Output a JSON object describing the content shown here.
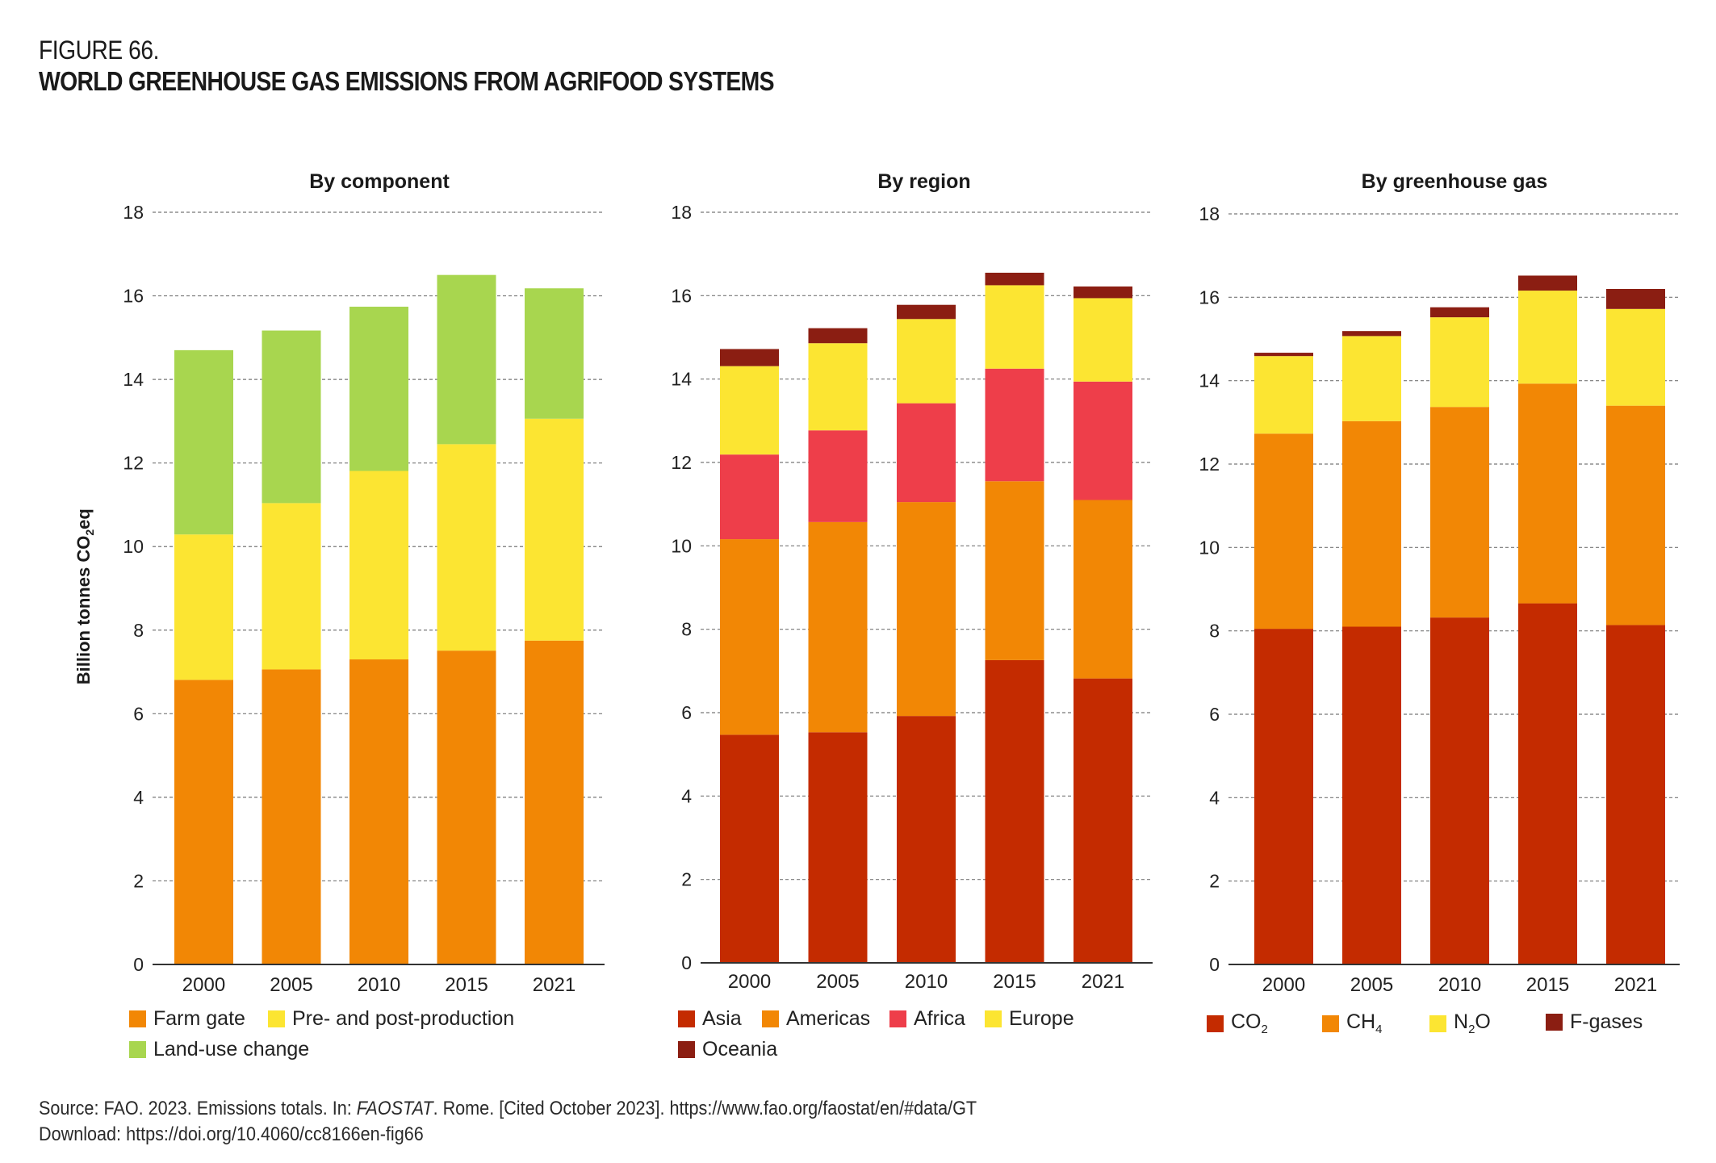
{
  "figure": {
    "label": "FIGURE 66.",
    "title": "WORLD GREENHOUSE GAS EMISSIONS FROM AGRIFOOD SYSTEMS",
    "y_axis_label": "Billion tonnes CO₂eq"
  },
  "source": {
    "line1_prefix": "Source: FAO. 2023. Emissions totals. In: ",
    "line1_italic": "FAOSTAT",
    "line1_suffix": ". Rome. [Cited October 2023]. https://www.fao.org/faostat/en/#data/GT",
    "line2": "Download: https://doi.org/10.4060/cc8166en-fig66"
  },
  "chart_data": [
    {
      "type": "bar",
      "stacked": true,
      "title": "By component",
      "xlabel": "",
      "ylabel": "Billion tonnes CO2eq",
      "ylim": [
        0,
        18
      ],
      "yticks": [
        0,
        2,
        4,
        6,
        8,
        10,
        12,
        14,
        16,
        18
      ],
      "grid": true,
      "legend_position": "bottom",
      "categories": [
        "2000",
        "2005",
        "2010",
        "2015",
        "2021"
      ],
      "series": [
        {
          "name": "Farm gate",
          "color": "#F28705",
          "values": [
            6.81,
            7.06,
            7.3,
            7.51,
            7.75
          ]
        },
        {
          "name": "Pre- and post-production",
          "color": "#FCE532",
          "values": [
            3.48,
            3.98,
            4.51,
            4.94,
            5.31
          ]
        },
        {
          "name": "Land-use change",
          "color": "#A8D64F",
          "values": [
            4.41,
            4.13,
            3.93,
            4.05,
            3.12
          ]
        }
      ],
      "legend_rows": [
        [
          "Farm gate",
          "Pre- and post-production"
        ],
        [
          "Land-use change"
        ]
      ]
    },
    {
      "type": "bar",
      "stacked": true,
      "title": "By region",
      "xlabel": "",
      "ylabel": "",
      "ylim": [
        0,
        18
      ],
      "yticks": [
        0,
        2,
        4,
        6,
        8,
        10,
        12,
        14,
        16,
        18
      ],
      "grid": true,
      "legend_position": "bottom",
      "categories": [
        "2000",
        "2005",
        "2010",
        "2015",
        "2021"
      ],
      "series": [
        {
          "name": "Asia",
          "color": "#C42B00",
          "values": [
            5.47,
            5.53,
            5.92,
            7.26,
            6.82
          ]
        },
        {
          "name": "Americas",
          "color": "#F28705",
          "values": [
            4.69,
            5.04,
            5.13,
            4.29,
            4.28
          ]
        },
        {
          "name": "Africa",
          "color": "#EE3E4A",
          "values": [
            2.03,
            2.2,
            2.37,
            2.7,
            2.84
          ]
        },
        {
          "name": "Europe",
          "color": "#FCE532",
          "values": [
            2.12,
            2.09,
            2.02,
            2.0,
            2.0
          ]
        },
        {
          "name": "Oceania",
          "color": "#8B1E12",
          "values": [
            0.41,
            0.36,
            0.34,
            0.3,
            0.28
          ]
        }
      ],
      "legend_rows": [
        [
          "Asia",
          "Americas",
          "Africa",
          "Europe"
        ],
        [
          "Oceania"
        ]
      ]
    },
    {
      "type": "bar",
      "stacked": true,
      "title": "By greenhouse gas",
      "xlabel": "",
      "ylabel": "",
      "ylim": [
        0,
        18
      ],
      "yticks": [
        0,
        2,
        4,
        6,
        8,
        10,
        12,
        14,
        16,
        18
      ],
      "grid": true,
      "legend_position": "bottom",
      "categories": [
        "2000",
        "2005",
        "2010",
        "2015",
        "2021"
      ],
      "series": [
        {
          "name": "CO2",
          "label_main": "CO",
          "label_sub": "2",
          "label_tail": "",
          "color": "#C42B00",
          "values": [
            8.05,
            8.1,
            8.32,
            8.66,
            8.14
          ]
        },
        {
          "name": "CH4",
          "label_main": "CH",
          "label_sub": "4",
          "label_tail": "",
          "color": "#F28705",
          "values": [
            4.68,
            4.93,
            5.05,
            5.27,
            5.26
          ]
        },
        {
          "name": "N2O",
          "label_main": "N",
          "label_sub": "2",
          "label_tail": "O",
          "color": "#FCE532",
          "values": [
            1.86,
            2.04,
            2.15,
            2.23,
            2.32
          ]
        },
        {
          "name": "F-gases",
          "label_main": "F-gases",
          "label_sub": "",
          "label_tail": "",
          "color": "#8B1E12",
          "values": [
            0.08,
            0.12,
            0.24,
            0.36,
            0.48
          ]
        }
      ],
      "legend_rows": [
        [
          "CO2",
          "CH4",
          "N2O",
          "F-gases"
        ]
      ]
    }
  ]
}
